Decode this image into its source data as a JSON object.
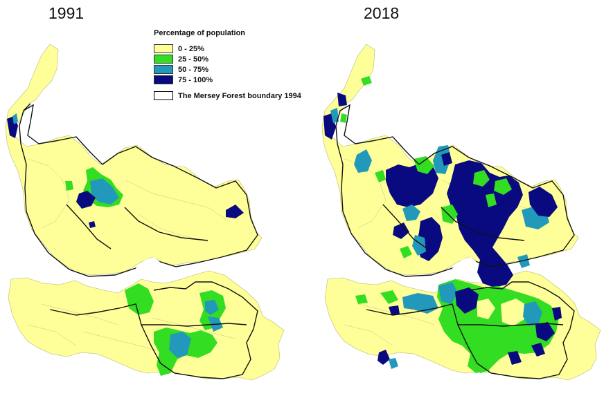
{
  "maps": [
    {
      "year": "1991"
    },
    {
      "year": "2018"
    }
  ],
  "legend": {
    "title": "Percentage of population",
    "classes": [
      {
        "label": "0 - 25%",
        "color": "#ffff99"
      },
      {
        "label": "25 - 50%",
        "color": "#33dd22"
      },
      {
        "label": "50 - 75%",
        "color": "#2299bb"
      },
      {
        "label": "75 - 100%",
        "color": "#0a0a80"
      }
    ],
    "boundary_label": "The Mersey Forest boundary 1994"
  },
  "colors": {
    "background": "#ffffff",
    "land": "#ffff99",
    "outline": "#222222",
    "ward_lines": "#b8b888"
  }
}
